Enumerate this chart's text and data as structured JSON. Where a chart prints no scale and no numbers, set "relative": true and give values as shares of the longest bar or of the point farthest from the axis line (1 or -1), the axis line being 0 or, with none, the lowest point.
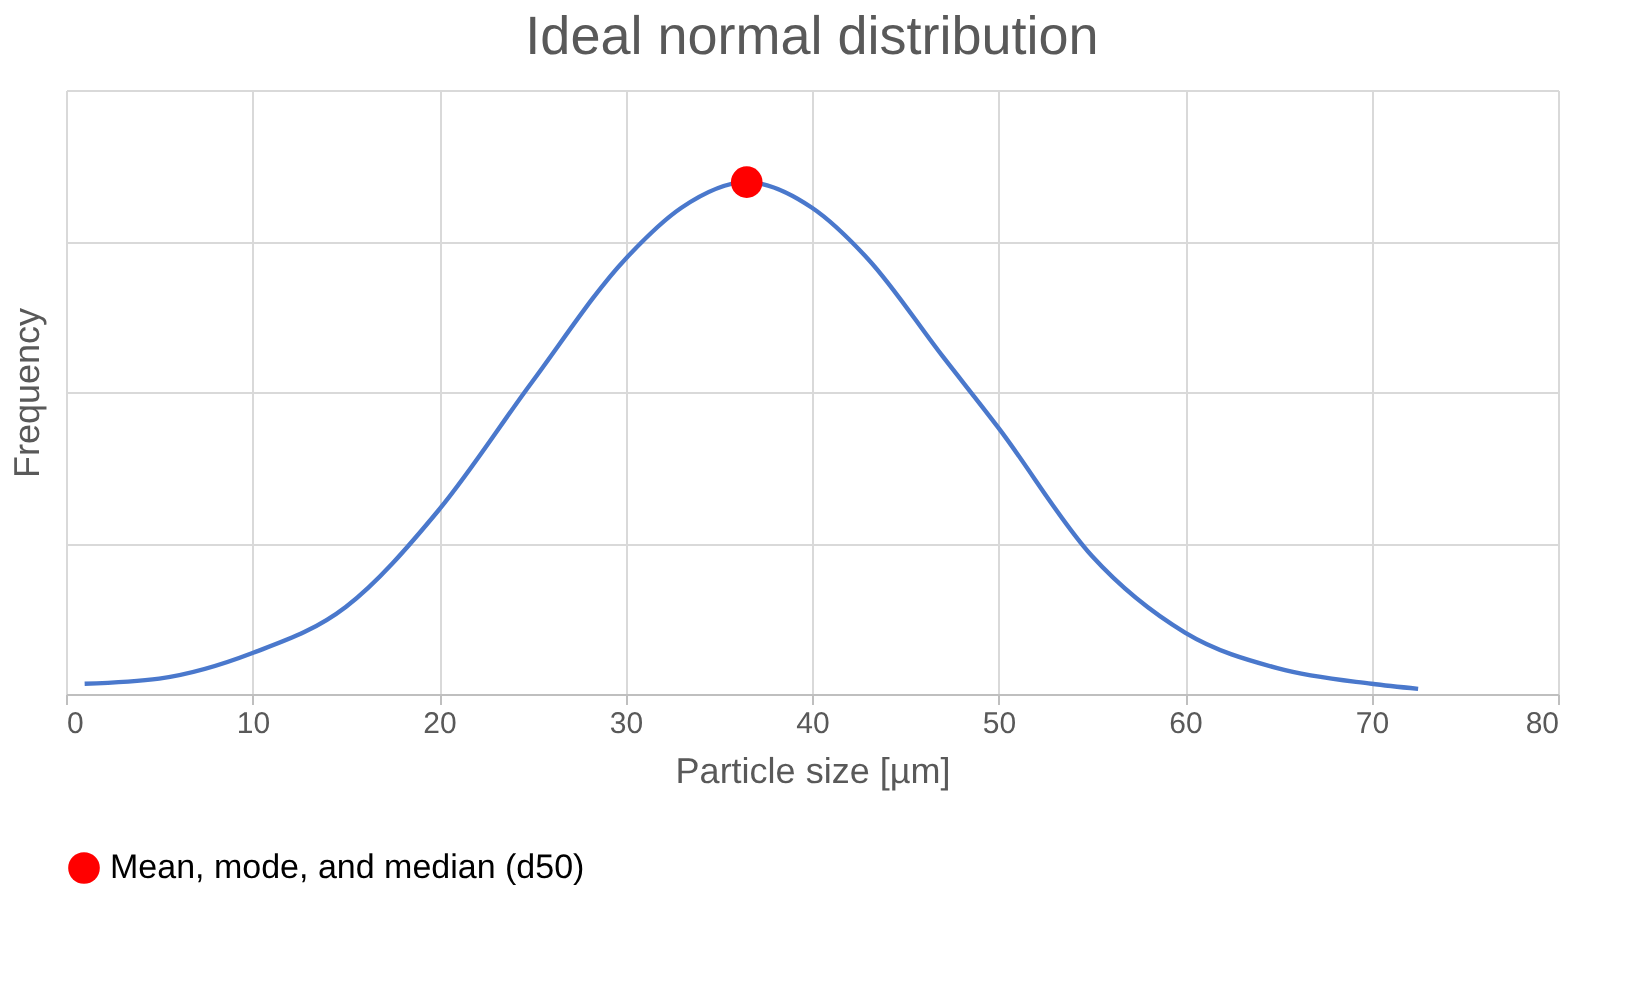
{
  "chart_data": {
    "type": "line",
    "title": "Ideal normal distribution",
    "xlabel": "Particle size [µm]",
    "ylabel": "Frequency",
    "relative": true,
    "grid": true,
    "legend": "bottom",
    "xlim": [
      0,
      80
    ],
    "xticks": [
      0,
      10,
      20,
      30,
      40,
      50,
      60,
      70,
      80
    ],
    "series": [
      {
        "color": "#4a78cc",
        "marker": "none",
        "x": [
          1,
          5,
          10,
          15,
          20,
          25,
          30,
          33,
          36.5,
          40,
          43,
          47,
          50,
          55,
          60,
          65,
          70,
          72.5
        ],
        "values": [
          0.02,
          0.03,
          0.08,
          0.17,
          0.36,
          0.61,
          0.85,
          0.95,
          1,
          0.95,
          0.85,
          0.66,
          0.52,
          0.27,
          0.12,
          0.05,
          0.02,
          0.01
        ]
      },
      {
        "type": "scatter",
        "name": "Mean, mode, and median (d50)",
        "color": "#ff0000",
        "marker": "circle",
        "x": [
          36.5
        ],
        "values": [
          1
        ]
      }
    ]
  }
}
